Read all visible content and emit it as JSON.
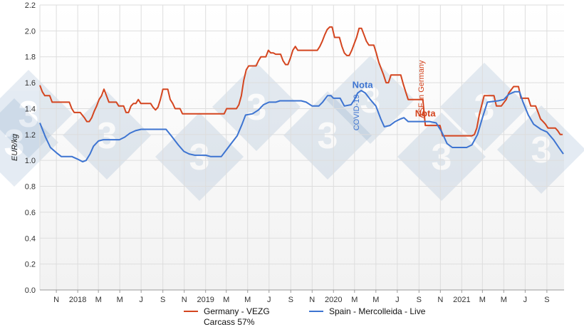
{
  "chart_data": {
    "type": "line",
    "title": "",
    "xlabel": "",
    "ylabel": "EUR/kg",
    "ylim": [
      0,
      2.2
    ],
    "y_ticks": [
      "0.0",
      "0.2",
      "0.4",
      "0.6",
      "0.8",
      "1.0",
      "1.2",
      "1.4",
      "1.6",
      "1.8",
      "2.0",
      "2.2"
    ],
    "x_range": [
      "2017-09-15",
      "2021-10-20"
    ],
    "x_ticks": [
      {
        "date": "2017-11-01",
        "label": "N"
      },
      {
        "date": "2018-01-01",
        "label": "2018"
      },
      {
        "date": "2018-03-01",
        "label": "M"
      },
      {
        "date": "2018-05-01",
        "label": "M"
      },
      {
        "date": "2018-07-01",
        "label": "J"
      },
      {
        "date": "2018-09-01",
        "label": "S"
      },
      {
        "date": "2018-11-01",
        "label": "N"
      },
      {
        "date": "2019-01-01",
        "label": "2019"
      },
      {
        "date": "2019-03-01",
        "label": "M"
      },
      {
        "date": "2019-05-01",
        "label": "M"
      },
      {
        "date": "2019-07-01",
        "label": "J"
      },
      {
        "date": "2019-09-01",
        "label": "S"
      },
      {
        "date": "2019-11-01",
        "label": "N"
      },
      {
        "date": "2020-01-01",
        "label": "2020"
      },
      {
        "date": "2020-03-01",
        "label": "M"
      },
      {
        "date": "2020-05-01",
        "label": "M"
      },
      {
        "date": "2020-07-01",
        "label": "J"
      },
      {
        "date": "2020-09-01",
        "label": "S"
      },
      {
        "date": "2020-11-01",
        "label": "N"
      },
      {
        "date": "2021-01-01",
        "label": "2021"
      },
      {
        "date": "2021-03-01",
        "label": "M"
      },
      {
        "date": "2021-05-01",
        "label": "M"
      },
      {
        "date": "2021-07-01",
        "label": "J"
      },
      {
        "date": "2021-09-01",
        "label": "S"
      }
    ],
    "grid": true,
    "legend_position": "bottom",
    "series": [
      {
        "name": "Germany - VEZG Carcass 57%",
        "legend_lines": [
          "Germany - VEZG",
          "Carcass 57%"
        ],
        "color": "#d4451f",
        "points": [
          [
            "2017-09-15",
            1.58
          ],
          [
            "2017-09-22",
            1.53
          ],
          [
            "2017-09-29",
            1.5
          ],
          [
            "2017-10-13",
            1.5
          ],
          [
            "2017-10-20",
            1.45
          ],
          [
            "2017-11-15",
            1.45
          ],
          [
            "2017-12-08",
            1.45
          ],
          [
            "2017-12-15",
            1.4
          ],
          [
            "2017-12-22",
            1.37
          ],
          [
            "2018-01-08",
            1.37
          ],
          [
            "2018-01-20",
            1.33
          ],
          [
            "2018-01-27",
            1.3
          ],
          [
            "2018-02-03",
            1.3
          ],
          [
            "2018-02-10",
            1.33
          ],
          [
            "2018-02-17",
            1.38
          ],
          [
            "2018-02-24",
            1.42
          ],
          [
            "2018-03-03",
            1.47
          ],
          [
            "2018-03-10",
            1.5
          ],
          [
            "2018-03-17",
            1.55
          ],
          [
            "2018-03-24",
            1.5
          ],
          [
            "2018-03-31",
            1.45
          ],
          [
            "2018-04-21",
            1.45
          ],
          [
            "2018-04-28",
            1.42
          ],
          [
            "2018-05-12",
            1.42
          ],
          [
            "2018-05-19",
            1.37
          ],
          [
            "2018-05-26",
            1.37
          ],
          [
            "2018-06-02",
            1.42
          ],
          [
            "2018-06-09",
            1.44
          ],
          [
            "2018-06-16",
            1.44
          ],
          [
            "2018-06-23",
            1.47
          ],
          [
            "2018-06-30",
            1.44
          ],
          [
            "2018-07-28",
            1.44
          ],
          [
            "2018-08-04",
            1.41
          ],
          [
            "2018-08-11",
            1.39
          ],
          [
            "2018-08-18",
            1.41
          ],
          [
            "2018-08-25",
            1.47
          ],
          [
            "2018-09-01",
            1.55
          ],
          [
            "2018-09-15",
            1.55
          ],
          [
            "2018-09-22",
            1.47
          ],
          [
            "2018-09-29",
            1.44
          ],
          [
            "2018-10-06",
            1.4
          ],
          [
            "2018-10-20",
            1.4
          ],
          [
            "2018-10-27",
            1.36
          ],
          [
            "2019-02-09",
            1.36
          ],
          [
            "2019-02-23",
            1.36
          ],
          [
            "2019-03-02",
            1.4
          ],
          [
            "2019-03-30",
            1.4
          ],
          [
            "2019-04-06",
            1.43
          ],
          [
            "2019-04-13",
            1.5
          ],
          [
            "2019-04-20",
            1.62
          ],
          [
            "2019-04-27",
            1.7
          ],
          [
            "2019-05-04",
            1.73
          ],
          [
            "2019-05-25",
            1.73
          ],
          [
            "2019-06-01",
            1.77
          ],
          [
            "2019-06-08",
            1.8
          ],
          [
            "2019-06-22",
            1.8
          ],
          [
            "2019-06-29",
            1.85
          ],
          [
            "2019-07-06",
            1.83
          ],
          [
            "2019-07-13",
            1.83
          ],
          [
            "2019-07-20",
            1.82
          ],
          [
            "2019-08-03",
            1.82
          ],
          [
            "2019-08-10",
            1.77
          ],
          [
            "2019-08-17",
            1.74
          ],
          [
            "2019-08-24",
            1.74
          ],
          [
            "2019-08-31",
            1.79
          ],
          [
            "2019-09-07",
            1.85
          ],
          [
            "2019-09-14",
            1.88
          ],
          [
            "2019-09-21",
            1.85
          ],
          [
            "2019-11-16",
            1.85
          ],
          [
            "2019-11-23",
            1.88
          ],
          [
            "2019-11-30",
            1.92
          ],
          [
            "2019-12-07",
            1.97
          ],
          [
            "2019-12-14",
            2.01
          ],
          [
            "2019-12-21",
            2.03
          ],
          [
            "2019-12-28",
            2.03
          ],
          [
            "2020-01-04",
            1.95
          ],
          [
            "2020-01-18",
            1.95
          ],
          [
            "2020-01-25",
            1.88
          ],
          [
            "2020-02-01",
            1.83
          ],
          [
            "2020-02-08",
            1.81
          ],
          [
            "2020-02-15",
            1.81
          ],
          [
            "2020-02-22",
            1.85
          ],
          [
            "2020-02-29",
            1.9
          ],
          [
            "2020-03-07",
            1.95
          ],
          [
            "2020-03-14",
            2.02
          ],
          [
            "2020-03-21",
            2.02
          ],
          [
            "2020-03-28",
            1.97
          ],
          [
            "2020-04-04",
            1.92
          ],
          [
            "2020-04-11",
            1.89
          ],
          [
            "2020-04-25",
            1.89
          ],
          [
            "2020-05-02",
            1.83
          ],
          [
            "2020-05-09",
            1.76
          ],
          [
            "2020-05-23",
            1.66
          ],
          [
            "2020-05-30",
            1.6
          ],
          [
            "2020-06-06",
            1.6
          ],
          [
            "2020-06-13",
            1.66
          ],
          [
            "2020-07-11",
            1.66
          ],
          [
            "2020-07-18",
            1.59
          ],
          [
            "2020-07-25",
            1.53
          ],
          [
            "2020-08-01",
            1.47
          ],
          [
            "2020-09-12",
            1.47
          ],
          [
            "2020-09-19",
            1.27
          ],
          [
            "2020-10-31",
            1.27
          ],
          [
            "2020-11-07",
            1.19
          ],
          [
            "2021-01-30",
            1.19
          ],
          [
            "2021-02-06",
            1.2
          ],
          [
            "2021-02-13",
            1.25
          ],
          [
            "2021-02-20",
            1.35
          ],
          [
            "2021-03-06",
            1.5
          ],
          [
            "2021-04-03",
            1.5
          ],
          [
            "2021-04-10",
            1.42
          ],
          [
            "2021-04-24",
            1.42
          ],
          [
            "2021-05-08",
            1.47
          ],
          [
            "2021-05-15",
            1.52
          ],
          [
            "2021-05-29",
            1.57
          ],
          [
            "2021-06-12",
            1.57
          ],
          [
            "2021-06-19",
            1.48
          ],
          [
            "2021-07-10",
            1.48
          ],
          [
            "2021-07-17",
            1.42
          ],
          [
            "2021-07-31",
            1.42
          ],
          [
            "2021-08-07",
            1.37
          ],
          [
            "2021-08-14",
            1.32
          ],
          [
            "2021-08-21",
            1.3
          ],
          [
            "2021-08-28",
            1.28
          ],
          [
            "2021-09-04",
            1.25
          ],
          [
            "2021-09-25",
            1.25
          ],
          [
            "2021-10-02",
            1.23
          ],
          [
            "2021-10-09",
            1.2
          ],
          [
            "2021-10-16",
            1.2
          ]
        ]
      },
      {
        "name": "Spain - Mercolleida - Live",
        "legend_lines": [
          "Spain - Mercolleida - Live"
        ],
        "color": "#3d74d1",
        "points": [
          [
            "2017-09-15",
            1.29
          ],
          [
            "2017-10-01",
            1.18
          ],
          [
            "2017-10-15",
            1.1
          ],
          [
            "2017-11-01",
            1.06
          ],
          [
            "2017-11-15",
            1.03
          ],
          [
            "2017-12-15",
            1.03
          ],
          [
            "2018-01-01",
            1.01
          ],
          [
            "2018-01-15",
            0.99
          ],
          [
            "2018-01-25",
            1.0
          ],
          [
            "2018-02-05",
            1.05
          ],
          [
            "2018-02-15",
            1.11
          ],
          [
            "2018-03-01",
            1.15
          ],
          [
            "2018-03-15",
            1.16
          ],
          [
            "2018-04-30",
            1.16
          ],
          [
            "2018-05-15",
            1.18
          ],
          [
            "2018-05-30",
            1.21
          ],
          [
            "2018-06-15",
            1.23
          ],
          [
            "2018-07-01",
            1.24
          ],
          [
            "2018-09-10",
            1.24
          ],
          [
            "2018-09-25",
            1.19
          ],
          [
            "2018-10-15",
            1.12
          ],
          [
            "2018-10-31",
            1.07
          ],
          [
            "2018-11-15",
            1.05
          ],
          [
            "2018-12-01",
            1.04
          ],
          [
            "2019-01-01",
            1.04
          ],
          [
            "2019-01-15",
            1.03
          ],
          [
            "2019-02-15",
            1.03
          ],
          [
            "2019-03-01",
            1.08
          ],
          [
            "2019-03-15",
            1.13
          ],
          [
            "2019-04-01",
            1.19
          ],
          [
            "2019-04-15",
            1.28
          ],
          [
            "2019-04-25",
            1.35
          ],
          [
            "2019-05-15",
            1.36
          ],
          [
            "2019-06-01",
            1.39
          ],
          [
            "2019-06-15",
            1.43
          ],
          [
            "2019-07-01",
            1.45
          ],
          [
            "2019-07-20",
            1.45
          ],
          [
            "2019-08-01",
            1.46
          ],
          [
            "2019-09-01",
            1.46
          ],
          [
            "2019-10-01",
            1.46
          ],
          [
            "2019-10-15",
            1.45
          ],
          [
            "2019-11-01",
            1.42
          ],
          [
            "2019-11-20",
            1.42
          ],
          [
            "2019-12-01",
            1.45
          ],
          [
            "2019-12-15",
            1.5
          ],
          [
            "2019-12-25",
            1.5
          ],
          [
            "2020-01-01",
            1.48
          ],
          [
            "2020-01-20",
            1.48
          ],
          [
            "2020-02-01",
            1.42
          ],
          [
            "2020-02-20",
            1.43
          ],
          [
            "2020-03-01",
            1.47
          ],
          [
            "2020-03-10",
            1.52
          ],
          [
            "2020-03-20",
            1.54
          ],
          [
            "2020-04-01",
            1.52
          ],
          [
            "2020-04-15",
            1.47
          ],
          [
            "2020-05-01",
            1.42
          ],
          [
            "2020-05-15",
            1.32
          ],
          [
            "2020-05-25",
            1.26
          ],
          [
            "2020-06-10",
            1.27
          ],
          [
            "2020-06-25",
            1.3
          ],
          [
            "2020-07-10",
            1.32
          ],
          [
            "2020-07-20",
            1.33
          ],
          [
            "2020-08-01",
            1.3
          ],
          [
            "2020-09-15",
            1.3
          ],
          [
            "2020-10-01",
            1.3
          ],
          [
            "2020-10-20",
            1.29
          ],
          [
            "2020-11-05",
            1.22
          ],
          [
            "2020-11-20",
            1.13
          ],
          [
            "2020-12-05",
            1.1
          ],
          [
            "2021-01-15",
            1.1
          ],
          [
            "2021-01-30",
            1.12
          ],
          [
            "2021-02-15",
            1.2
          ],
          [
            "2021-03-01",
            1.33
          ],
          [
            "2021-03-15",
            1.45
          ],
          [
            "2021-04-15",
            1.46
          ],
          [
            "2021-05-01",
            1.47
          ],
          [
            "2021-05-15",
            1.51
          ],
          [
            "2021-06-01",
            1.53
          ],
          [
            "2021-06-15",
            1.53
          ],
          [
            "2021-06-25",
            1.45
          ],
          [
            "2021-07-10",
            1.35
          ],
          [
            "2021-07-25",
            1.28
          ],
          [
            "2021-08-15",
            1.24
          ],
          [
            "2021-09-01",
            1.22
          ],
          [
            "2021-09-20",
            1.16
          ],
          [
            "2021-10-05",
            1.1
          ],
          [
            "2021-10-18",
            1.05
          ]
        ]
      }
    ],
    "annotations": [
      {
        "text": "Nota",
        "x": "2020-03-24",
        "y": 1.56,
        "color": "#3d74d1",
        "bold": true
      },
      {
        "text": "COVID-19",
        "x": "2020-03-14",
        "y": 1.37,
        "color": "#3d74d1",
        "rotate": -90
      },
      {
        "text": "Nota",
        "x": "2020-09-19",
        "y": 1.34,
        "color": "#d4451f",
        "bold": true
      },
      {
        "text": "ASF in Germany",
        "x": "2020-09-15",
        "y": 1.55,
        "color": "#d4451f",
        "rotate": -90
      }
    ]
  }
}
